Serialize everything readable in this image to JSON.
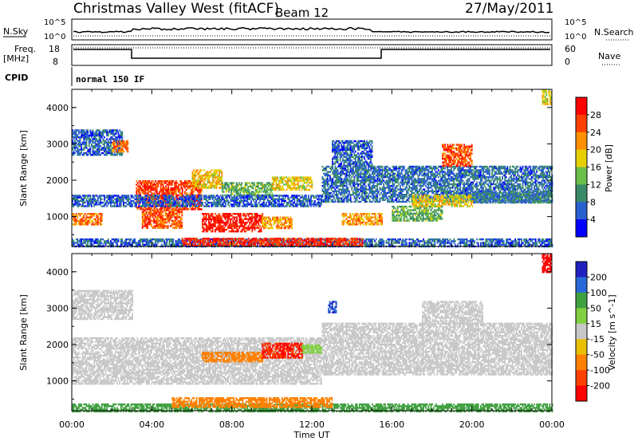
{
  "header": {
    "station": "Christmas Valley West (fitACF)",
    "beam": "Beam 12",
    "date": "27/May/2011"
  },
  "colors": {
    "power_scale": [
      "#0000ff",
      "#2a5fd0",
      "#3a8a6a",
      "#6cc04a",
      "#e8d000",
      "#ff9000",
      "#ff4000",
      "#ff0000"
    ],
    "velocity_scale": [
      "#2020c0",
      "#2a6ad8",
      "#40a040",
      "#80d040",
      "#c8c8c8",
      "#e8c000",
      "#ff8000",
      "#ff4000",
      "#ff0000"
    ],
    "ground_scatter": "#c8c8c8"
  },
  "top_panels": {
    "nsky_label": "N.Sky",
    "nsky_ticks": [
      "10^5",
      "10^0"
    ],
    "nsearch_label": "N.Search",
    "nsearch_ticks": [
      "10^5",
      "10^0"
    ],
    "freq_label": "Freq.",
    "freq_unit": "[MHz]",
    "freq_ticks": [
      "18",
      "8"
    ],
    "nave_label": "Nave",
    "nave_ticks": [
      "60",
      "0"
    ],
    "cpid_label": "CPID",
    "cpid_text": "normal 150 IF"
  },
  "chart_data": [
    {
      "type": "heatmap",
      "panel": "power",
      "ylabel": "Slant Range [km]",
      "xlabel": "Time UT",
      "x_ticks": [
        "00:00",
        "04:00",
        "08:00",
        "12:00",
        "16:00",
        "20:00",
        "00:00"
      ],
      "x_range_hours": [
        0,
        24
      ],
      "y_ticks": [
        1000,
        2000,
        3000,
        4000
      ],
      "y_range_km": [
        180,
        4500
      ],
      "colorbar_label": "Power [dB]",
      "colorbar_ticks": [
        "4",
        "8",
        "12",
        "16",
        "20",
        "24",
        "28"
      ],
      "colorbar_range": [
        0,
        30
      ],
      "regions": [
        {
          "t0": 0.0,
          "t1": 24.0,
          "r0": 180,
          "r1": 400,
          "value": 6
        },
        {
          "t0": 5.5,
          "t1": 14.5,
          "r0": 220,
          "r1": 420,
          "value": 26
        },
        {
          "t0": 0.0,
          "t1": 1.5,
          "r0": 800,
          "r1": 1100,
          "value": 22
        },
        {
          "t0": 3.2,
          "t1": 6.5,
          "r0": 1200,
          "r1": 2000,
          "value": 25
        },
        {
          "t0": 3.5,
          "t1": 5.5,
          "r0": 700,
          "r1": 1200,
          "value": 24
        },
        {
          "t0": 6.5,
          "t1": 9.5,
          "r0": 600,
          "r1": 1100,
          "value": 27
        },
        {
          "t0": 9.5,
          "t1": 11.0,
          "r0": 700,
          "r1": 1000,
          "value": 20
        },
        {
          "t0": 6.0,
          "t1": 7.5,
          "r0": 1800,
          "r1": 2300,
          "value": 18
        },
        {
          "t0": 7.5,
          "t1": 10.0,
          "r0": 1600,
          "r1": 1950,
          "value": 12
        },
        {
          "t0": 10.0,
          "t1": 12.0,
          "r0": 1750,
          "r1": 2100,
          "value": 17
        },
        {
          "t0": 0.0,
          "t1": 12.5,
          "r0": 1300,
          "r1": 1600,
          "value": 6
        },
        {
          "t0": 0.0,
          "t1": 2.5,
          "r0": 2700,
          "r1": 3400,
          "value": 6
        },
        {
          "t0": 2.0,
          "t1": 2.8,
          "r0": 2800,
          "r1": 3100,
          "value": 22
        },
        {
          "t0": 12.5,
          "t1": 24.0,
          "r0": 1400,
          "r1": 2400,
          "value": 7
        },
        {
          "t0": 13.5,
          "t1": 15.5,
          "r0": 800,
          "r1": 1100,
          "value": 20
        },
        {
          "t0": 16.0,
          "t1": 18.5,
          "r0": 900,
          "r1": 1300,
          "value": 12
        },
        {
          "t0": 17.0,
          "t1": 20.0,
          "r0": 1300,
          "r1": 1600,
          "value": 17
        },
        {
          "t0": 18.5,
          "t1": 20.0,
          "r0": 2400,
          "r1": 3000,
          "value": 24
        },
        {
          "t0": 20.0,
          "t1": 24.0,
          "r0": 1400,
          "r1": 1700,
          "value": 8
        },
        {
          "t0": 13.0,
          "t1": 15.0,
          "r0": 2400,
          "r1": 3100,
          "value": 6
        },
        {
          "t0": 23.5,
          "t1": 24.0,
          "r0": 4100,
          "r1": 4500,
          "value": 16
        }
      ]
    },
    {
      "type": "heatmap",
      "panel": "velocity",
      "ylabel": "Slant Range [km]",
      "xlabel": "Time UT",
      "x_ticks": [
        "00:00",
        "04:00",
        "08:00",
        "12:00",
        "16:00",
        "20:00",
        "00:00"
      ],
      "x_range_hours": [
        0,
        24
      ],
      "y_ticks": [
        1000,
        2000,
        3000,
        4000
      ],
      "y_range_km": [
        180,
        4500
      ],
      "colorbar_label": "Velocity [m s^-1]",
      "colorbar_ticks": [
        "200",
        "100",
        "50",
        "15",
        "-15",
        "-50",
        "-100",
        "-200"
      ],
      "colorbar_range": [
        -250,
        250
      ],
      "regions": [
        {
          "t0": 0.0,
          "t1": 24.0,
          "r0": 180,
          "r1": 380,
          "value": 60
        },
        {
          "t0": 5.0,
          "t1": 13.0,
          "r0": 300,
          "r1": 550,
          "value": -70
        },
        {
          "t0": 0.0,
          "t1": 12.5,
          "r0": 900,
          "r1": 2200,
          "value": 0
        },
        {
          "t0": 6.5,
          "t1": 9.5,
          "r0": 1550,
          "r1": 1800,
          "value": -80
        },
        {
          "t0": 9.5,
          "t1": 11.5,
          "r0": 1650,
          "r1": 2050,
          "value": -200
        },
        {
          "t0": 11.5,
          "t1": 12.5,
          "r0": 1800,
          "r1": 2000,
          "value": 40
        },
        {
          "t0": 0.0,
          "t1": 3.0,
          "r0": 2700,
          "r1": 3500,
          "value": 0
        },
        {
          "t0": 12.5,
          "t1": 24.0,
          "r0": 1200,
          "r1": 2600,
          "value": 0
        },
        {
          "t0": 17.5,
          "t1": 20.5,
          "r0": 2600,
          "r1": 3200,
          "value": 0
        },
        {
          "t0": 12.8,
          "t1": 13.2,
          "r0": 2900,
          "r1": 3200,
          "value": 200
        },
        {
          "t0": 23.5,
          "t1": 24.0,
          "r0": 4000,
          "r1": 4500,
          "value": -220
        }
      ]
    }
  ]
}
